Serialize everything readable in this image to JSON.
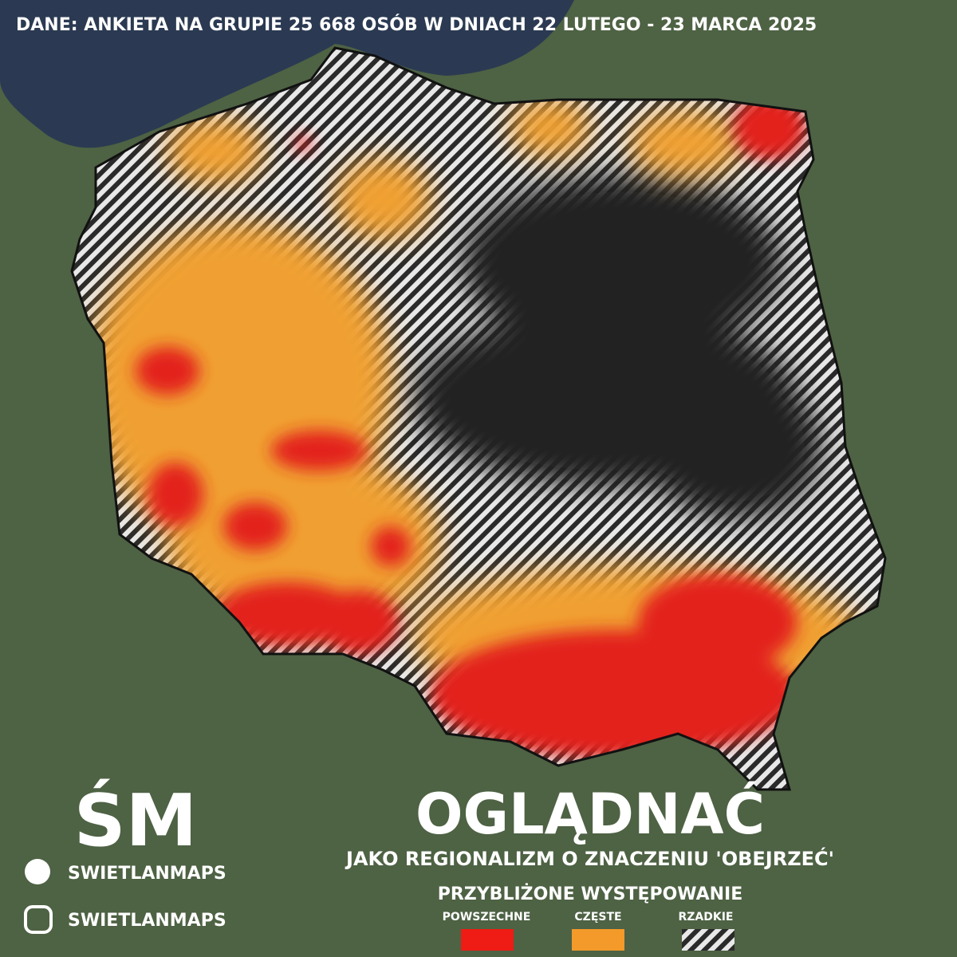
{
  "header": {
    "source": "DANE: ANKIETA NA GRUPIE 25 668 OSÓB W DNIACH 22 LUTEGO - 23 MARCA 2025"
  },
  "brand": {
    "logo": "ŚM",
    "facebook": "SWIETLANMAPS",
    "instagram": "SWIETLANMAPS"
  },
  "title": {
    "word": "OGLĄDNAĆ",
    "subtitle": "JAKO REGIONALIZM O ZNACZENIU 'OBEJRZEĆ'"
  },
  "legend": {
    "title": "PRZYBLIŻONE WYSTĘPOWANIE",
    "items": [
      "POWSZECHNE",
      "CZĘSTE",
      "RZADKIE"
    ]
  }
}
